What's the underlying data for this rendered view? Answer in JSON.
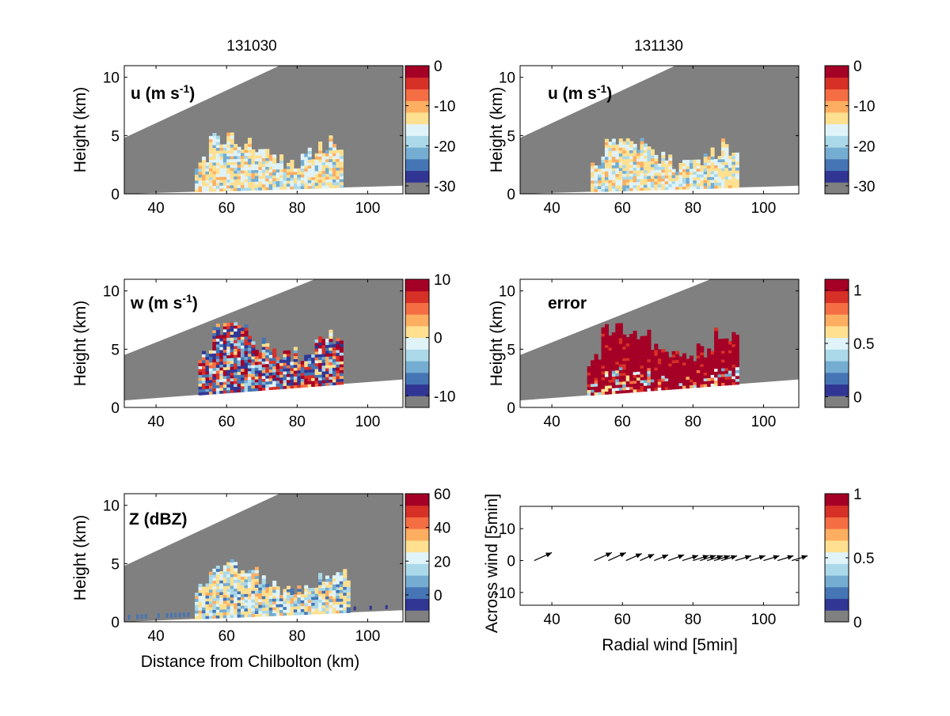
{
  "figure": {
    "col_titles": [
      "131030",
      "131130"
    ]
  },
  "palette": {
    "colormap": [
      "#313695",
      "#4575b4",
      "#74add1",
      "#abd9e9",
      "#e0f3f8",
      "#fee090",
      "#fdae61",
      "#f46d43",
      "#d73027",
      "#a50026"
    ],
    "missing": "#808080",
    "edge": "#000000"
  },
  "chart_data": [
    {
      "type": "heatmap",
      "id": "u-131030",
      "col_title": "131030",
      "panel_label": "u (m s",
      "panel_label_sup": "-1",
      "panel_label_end": ")",
      "ylabel": "Height (km)",
      "xlabel": "",
      "xlim": [
        31,
        110
      ],
      "ylim": [
        0,
        11
      ],
      "xticks": [
        40,
        60,
        80,
        100
      ],
      "yticks": [
        0,
        5,
        10
      ],
      "colorbar": {
        "range": [
          -32,
          0
        ],
        "ticks": [
          "0",
          "-10",
          "-20",
          "-30"
        ],
        "tick_values": [
          0,
          -10,
          -20,
          -30
        ]
      },
      "echo_region": {
        "x": [
          51,
          93
        ],
        "y_top": 4.8,
        "value": "mixed -10 to -20"
      },
      "beam": {
        "upper_at_xmin": 4.8,
        "upper_reaches_top_at": 75,
        "lower_at_xmin": 0.0,
        "lower_at_xmax": 0.7
      }
    },
    {
      "type": "heatmap",
      "id": "u-131130",
      "col_title": "131130",
      "panel_label": "u (m s",
      "panel_label_sup": "-1",
      "panel_label_end": ")",
      "ylabel": "Height (km)",
      "xlabel": "",
      "xlim": [
        31,
        110
      ],
      "ylim": [
        0,
        11
      ],
      "xticks": [
        40,
        60,
        80,
        100
      ],
      "yticks": [
        0,
        5,
        10
      ],
      "colorbar": {
        "range": [
          -32,
          0
        ],
        "ticks": [
          "0",
          "-10",
          "-20",
          "-30"
        ],
        "tick_values": [
          0,
          -10,
          -20,
          -30
        ]
      },
      "echo_region": {
        "x": [
          51,
          93
        ],
        "y_top": 4.5,
        "value": "mixed -10 to -20"
      },
      "beam": {
        "upper_at_xmin": 4.8,
        "upper_reaches_top_at": 75,
        "lower_at_xmin": 0.0,
        "lower_at_xmax": 0.7
      }
    },
    {
      "type": "heatmap",
      "id": "w-131030",
      "panel_label": "w (m s",
      "panel_label_sup": "-1",
      "panel_label_end": ")",
      "ylabel": "Height (km)",
      "xlabel": "",
      "xlim": [
        31,
        110
      ],
      "ylim": [
        0,
        11
      ],
      "xticks": [
        40,
        60,
        80,
        100
      ],
      "yticks": [
        0,
        5,
        10
      ],
      "colorbar": {
        "range": [
          -12,
          10
        ],
        "ticks": [
          "10",
          "0",
          "-10"
        ],
        "tick_values": [
          10,
          0,
          -10
        ]
      },
      "echo_region": {
        "x": [
          52,
          93
        ],
        "y_top": 5.9,
        "value": "mixed -10 to 10"
      },
      "beam": {
        "upper_at_xmin": 4.5,
        "upper_reaches_top_at": 85,
        "lower_at_xmin": 0.6,
        "lower_at_xmax": 2.4
      }
    },
    {
      "type": "heatmap",
      "id": "error-131130",
      "panel_label": "error",
      "ylabel": "Height (km)",
      "xlabel": "",
      "xlim": [
        31,
        110
      ],
      "ylim": [
        0,
        11
      ],
      "xticks": [
        40,
        60,
        80,
        100
      ],
      "yticks": [
        0,
        5,
        10
      ],
      "colorbar": {
        "range": [
          -0.1,
          1.1
        ],
        "ticks": [
          "1",
          "0.5",
          "0"
        ],
        "tick_values": [
          1,
          0.5,
          0
        ]
      },
      "echo_region": {
        "x": [
          50,
          93
        ],
        "y_top": 5.9,
        "value": "mostly 1"
      },
      "beam": {
        "upper_at_xmin": 4.5,
        "upper_reaches_top_at": 85,
        "lower_at_xmin": 0.6,
        "lower_at_xmax": 2.4
      }
    },
    {
      "type": "heatmap",
      "id": "z-131030",
      "panel_label": "Z (dBZ)",
      "ylabel": "Height (km)",
      "xlabel": "Distance from Chilbolton (km)",
      "xlim": [
        31,
        110
      ],
      "ylim": [
        0,
        11
      ],
      "xticks": [
        40,
        60,
        80,
        100
      ],
      "yticks": [
        0,
        5,
        10
      ],
      "colorbar": {
        "range": [
          -16,
          60
        ],
        "ticks": [
          "60",
          "40",
          "20",
          "0"
        ],
        "tick_values": [
          60,
          40,
          20,
          0
        ]
      },
      "echo_region": {
        "x": [
          51,
          95
        ],
        "y_top": 4.8,
        "value": "mixed 0 to 40"
      },
      "beam": {
        "upper_at_xmin": 4.8,
        "upper_reaches_top_at": 75,
        "lower_at_xmin": 0.0,
        "lower_at_xmax": 1.0
      }
    },
    {
      "type": "scatter",
      "id": "wind-vectors",
      "ylabel": "Across wind [5min]",
      "xlabel": "Radial wind [5min]",
      "xlim": [
        31,
        110
      ],
      "ylim": [
        -14,
        17
      ],
      "xticks": [
        40,
        60,
        80,
        100
      ],
      "yticks": [
        -10,
        0,
        10
      ],
      "colorbar": {
        "range": [
          0,
          1
        ],
        "ticks": [
          "1",
          "0.5",
          "0"
        ],
        "tick_values": [
          1,
          0.5,
          0
        ]
      },
      "vectors": [
        {
          "x": 35,
          "y": 0,
          "u": 5,
          "v": 2.5
        },
        {
          "x": 52,
          "y": 0,
          "u": 5,
          "v": 2.5
        },
        {
          "x": 56,
          "y": 0,
          "u": 5,
          "v": 2.5
        },
        {
          "x": 61,
          "y": 0,
          "u": 4.5,
          "v": 2.2
        },
        {
          "x": 65,
          "y": 0,
          "u": 4,
          "v": 2
        },
        {
          "x": 69,
          "y": 0,
          "u": 4,
          "v": 1.8
        },
        {
          "x": 73,
          "y": 0,
          "u": 4.5,
          "v": 1.8
        },
        {
          "x": 77,
          "y": 0,
          "u": 4.5,
          "v": 1.6
        },
        {
          "x": 80,
          "y": 0,
          "u": 4.5,
          "v": 1.6
        },
        {
          "x": 82,
          "y": 0,
          "u": 4.5,
          "v": 1.6
        },
        {
          "x": 84,
          "y": 0,
          "u": 4.5,
          "v": 1.5
        },
        {
          "x": 86,
          "y": 0,
          "u": 4.5,
          "v": 1.5
        },
        {
          "x": 88,
          "y": 0,
          "u": 4.5,
          "v": 1.5
        },
        {
          "x": 92,
          "y": 0,
          "u": 4.5,
          "v": 1.5
        },
        {
          "x": 96,
          "y": 0,
          "u": 4.5,
          "v": 1.5
        },
        {
          "x": 100,
          "y": 0,
          "u": 4.5,
          "v": 1.5
        },
        {
          "x": 104,
          "y": 0,
          "u": 4.5,
          "v": 1.5
        },
        {
          "x": 108,
          "y": 0,
          "u": 4.5,
          "v": 1.5
        }
      ]
    }
  ]
}
